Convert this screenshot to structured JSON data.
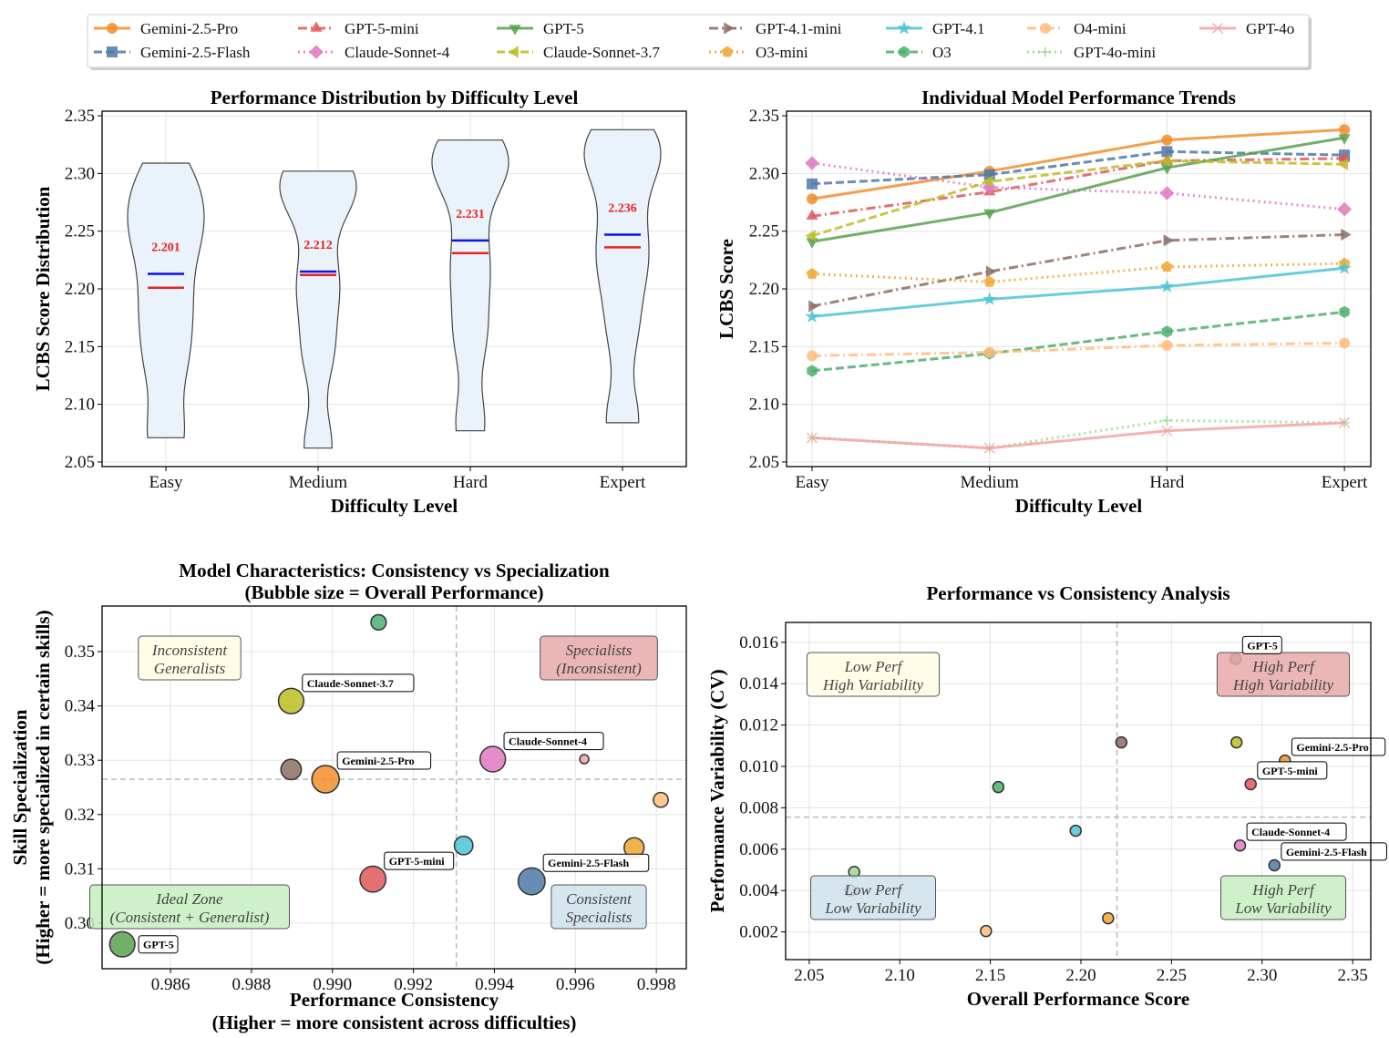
{
  "chart_data": [
    {
      "type": "violin",
      "title": "Performance Distribution by Difficulty Level",
      "xlabel": "Difficulty Level",
      "ylabel": "LCBS Score Distribution",
      "categories": [
        "Easy",
        "Medium",
        "Hard",
        "Expert"
      ],
      "means": [
        2.201,
        2.212,
        2.231,
        2.236
      ],
      "medians": [
        2.213,
        2.215,
        2.242,
        2.247
      ],
      "mean_labels": [
        "2.201",
        "2.212",
        "2.231",
        "2.236"
      ],
      "yticks": [
        "2.05",
        "2.10",
        "2.15",
        "2.20",
        "2.25",
        "2.30",
        "2.35"
      ],
      "ylim": [
        2.046,
        2.354
      ],
      "grid": true
    },
    {
      "type": "line",
      "title": "Individual Model Performance Trends",
      "xlabel": "Difficulty Level",
      "ylabel": "LCBS Score",
      "categories": [
        "Easy",
        "Medium",
        "Hard",
        "Expert"
      ],
      "yticks": [
        "2.05",
        "2.10",
        "2.15",
        "2.20",
        "2.25",
        "2.30",
        "2.35"
      ],
      "ylim": [
        2.046,
        2.354
      ],
      "grid": true,
      "series": [
        {
          "name": "Gemini-2.5-Pro",
          "color": "#f28e2b",
          "dash": "solid",
          "marker": "circle",
          "values": [
            2.278,
            2.302,
            2.329,
            2.338
          ]
        },
        {
          "name": "Gemini-2.5-Flash",
          "color": "#4e79a7",
          "dash": "dashed",
          "marker": "square",
          "values": [
            2.291,
            2.299,
            2.319,
            2.316
          ]
        },
        {
          "name": "GPT-5-mini",
          "color": "#e15759",
          "dash": "dashdot",
          "marker": "triangle-up",
          "values": [
            2.263,
            2.284,
            2.311,
            2.313
          ]
        },
        {
          "name": "Claude-Sonnet-4",
          "color": "#e079c3",
          "dash": "dotted",
          "marker": "diamond",
          "values": [
            2.309,
            2.288,
            2.283,
            2.269
          ]
        },
        {
          "name": "GPT-5",
          "color": "#59a14f",
          "dash": "solid",
          "marker": "triangle-down",
          "values": [
            2.241,
            2.266,
            2.305,
            2.331
          ]
        },
        {
          "name": "Claude-Sonnet-3.7",
          "color": "#bcbd22",
          "dash": "dashed",
          "marker": "triangle-left",
          "values": [
            2.246,
            2.293,
            2.311,
            2.308
          ]
        },
        {
          "name": "GPT-4.1-mini",
          "color": "#8c6d62",
          "dash": "dashdot",
          "marker": "triangle-right",
          "values": [
            2.185,
            2.215,
            2.242,
            2.247
          ]
        },
        {
          "name": "O3-mini",
          "color": "#f0a630",
          "dash": "dotted",
          "marker": "pentagon",
          "values": [
            2.213,
            2.206,
            2.219,
            2.222
          ]
        },
        {
          "name": "GPT-4.1",
          "color": "#4fc3d3",
          "dash": "solid",
          "marker": "star",
          "values": [
            2.176,
            2.191,
            2.202,
            2.218
          ]
        },
        {
          "name": "O3",
          "color": "#4caf6e",
          "dash": "dashed",
          "marker": "hexagon",
          "values": [
            2.129,
            2.144,
            2.163,
            2.18
          ]
        },
        {
          "name": "O4-mini",
          "color": "#ffbe7d",
          "dash": "dashdot",
          "marker": "octagon",
          "values": [
            2.142,
            2.145,
            2.151,
            2.153
          ]
        },
        {
          "name": "GPT-4o-mini",
          "color": "#98d98a",
          "dash": "dotted",
          "marker": "plus",
          "values": [
            2.071,
            2.062,
            2.086,
            2.084
          ]
        },
        {
          "name": "GPT-4o",
          "color": "#f4a3a3",
          "dash": "solid",
          "marker": "x",
          "values": [
            2.071,
            2.062,
            2.077,
            2.084
          ]
        }
      ]
    },
    {
      "type": "scatter",
      "title": "Model Characteristics: Consistency vs Specialization",
      "subtitle": "(Bubble size = Overall Performance)",
      "xlabel": "Performance Consistency",
      "xlabel2": "(Higher = more consistent across difficulties)",
      "ylabel": "Skill Specialization",
      "ylabel2": "(Higher = more specialized in certain skills)",
      "xlim": [
        0.98431,
        0.99874
      ],
      "ylim": [
        0.2916,
        0.3584
      ],
      "xticks": [
        "0.986",
        "0.988",
        "0.990",
        "0.992",
        "0.994",
        "0.996",
        "0.998"
      ],
      "yticks": [
        "0.30",
        "0.31",
        "0.32",
        "0.33",
        "0.34",
        "0.35"
      ],
      "ref_x": 0.99306,
      "ref_y": 0.3265,
      "quadrants": [
        {
          "l1": "Inconsistent",
          "l2": "Generalists",
          "pos": "top-left",
          "color": "#fffde3"
        },
        {
          "l1": "Specialists",
          "l2": "(Inconsistent)",
          "pos": "top-right",
          "color": "#e8a9a9"
        },
        {
          "l1": "Ideal Zone",
          "l2": "(Consistent + Generalist)",
          "pos": "bottom-left",
          "color": "#c5efbf"
        },
        {
          "l1": "Consistent",
          "l2": "Specialists",
          "pos": "bottom-right",
          "color": "#cfe2ec"
        }
      ],
      "points": [
        {
          "name": "O3",
          "x": 0.99114,
          "y": 0.3554,
          "perf": 2.154,
          "color": "#4caf6e",
          "label": false
        },
        {
          "name": "Claude-Sonnet-3.7",
          "x": 0.98898,
          "y": 0.3409,
          "perf": 2.286,
          "color": "#bcbd22",
          "label": true
        },
        {
          "name": "GPT-4.1-mini",
          "x": 0.98898,
          "y": 0.3283,
          "perf": 2.222,
          "color": "#8c6d62",
          "label": false
        },
        {
          "name": "Gemini-2.5-Pro",
          "x": 0.98983,
          "y": 0.3265,
          "perf": 2.313,
          "color": "#f28e2b",
          "label": true
        },
        {
          "name": "Claude-Sonnet-4",
          "x": 0.99396,
          "y": 0.3302,
          "perf": 2.288,
          "color": "#e079c3",
          "label": true
        },
        {
          "name": "GPT-4o",
          "x": 0.99622,
          "y": 0.3302,
          "perf": 2.073,
          "color": "#f4a3a3",
          "label": false
        },
        {
          "name": "O4-mini",
          "x": 0.99811,
          "y": 0.3227,
          "perf": 2.148,
          "color": "#ffbe7d",
          "label": false
        },
        {
          "name": "GPT-4.1",
          "x": 0.99324,
          "y": 0.3143,
          "perf": 2.197,
          "color": "#4fc3d3",
          "label": false
        },
        {
          "name": "O3-mini",
          "x": 0.99745,
          "y": 0.3139,
          "perf": 2.215,
          "color": "#f0a630",
          "label": false
        },
        {
          "name": "GPT-5-mini",
          "x": 0.991,
          "y": 0.3081,
          "perf": 2.294,
          "color": "#e15759",
          "label": true
        },
        {
          "name": "Gemini-2.5-Flash",
          "x": 0.99492,
          "y": 0.3077,
          "perf": 2.307,
          "color": "#4e79a7",
          "label": true
        },
        {
          "name": "GPT-5",
          "x": 0.98481,
          "y": 0.2961,
          "perf": 2.285,
          "color": "#59a14f",
          "label": true
        }
      ]
    },
    {
      "type": "scatter",
      "title": "Performance vs Consistency Analysis",
      "xlabel": "Overall Performance Score",
      "ylabel": "Performance Variability (CV)",
      "xlim": [
        2.037,
        2.36
      ],
      "ylim": [
        0.00066,
        0.01696
      ],
      "xticks": [
        "2.05",
        "2.10",
        "2.15",
        "2.20",
        "2.25",
        "2.30",
        "2.35"
      ],
      "yticks": [
        "0.002",
        "0.004",
        "0.006",
        "0.008",
        "0.010",
        "0.012",
        "0.014",
        "0.016"
      ],
      "ref_x": 2.2199,
      "ref_y": 0.00755,
      "quadrants": [
        {
          "l1": "Low Perf",
          "l2": "High Variability",
          "pos": "top-left",
          "color": "#fffde3"
        },
        {
          "l1": "High Perf",
          "l2": "High Variability",
          "pos": "top-right",
          "color": "#e8a9a9"
        },
        {
          "l1": "Low Perf",
          "l2": "Low Variability",
          "pos": "bottom-left",
          "color": "#cfe2ec"
        },
        {
          "l1": "High Perf",
          "l2": "Low Variability",
          "pos": "bottom-right",
          "color": "#c5efbf"
        }
      ],
      "points": [
        {
          "name": "GPT-5",
          "x": 2.2854,
          "y": 0.0152,
          "color": "#59a14f",
          "label": true
        },
        {
          "name": "GPT-4.1-mini",
          "x": 2.2223,
          "y": 0.01116,
          "color": "#8c6d62",
          "label": false
        },
        {
          "name": "Claude-Sonnet-3.7",
          "x": 2.2859,
          "y": 0.01116,
          "color": "#bcbd22",
          "label": false
        },
        {
          "name": "Gemini-2.5-Pro",
          "x": 2.3126,
          "y": 0.01028,
          "color": "#f28e2b",
          "label": true
        },
        {
          "name": "GPT-5-mini",
          "x": 2.2937,
          "y": 0.00914,
          "color": "#e15759",
          "label": true
        },
        {
          "name": "O3",
          "x": 2.1544,
          "y": 0.009,
          "color": "#4caf6e",
          "label": false
        },
        {
          "name": "GPT-4.1",
          "x": 2.1971,
          "y": 0.00689,
          "color": "#4fc3d3",
          "label": false
        },
        {
          "name": "Claude-Sonnet-4",
          "x": 2.2878,
          "y": 0.00618,
          "color": "#e079c3",
          "label": true
        },
        {
          "name": "Gemini-2.5-Flash",
          "x": 2.3068,
          "y": 0.00522,
          "color": "#4e79a7",
          "label": true
        },
        {
          "name": "GPT-4o-mini",
          "x": 2.0748,
          "y": 0.0049,
          "color": "#98d98a",
          "label": false
        },
        {
          "name": "GPT-4o",
          "x": 2.0728,
          "y": 0.004,
          "color": "#f4a3a3",
          "label": false
        },
        {
          "name": "O3-mini",
          "x": 2.215,
          "y": 0.00266,
          "color": "#f0a630",
          "label": false
        },
        {
          "name": "O4-mini",
          "x": 2.1476,
          "y": 0.00204,
          "color": "#ffbe7d",
          "label": false
        }
      ]
    }
  ]
}
